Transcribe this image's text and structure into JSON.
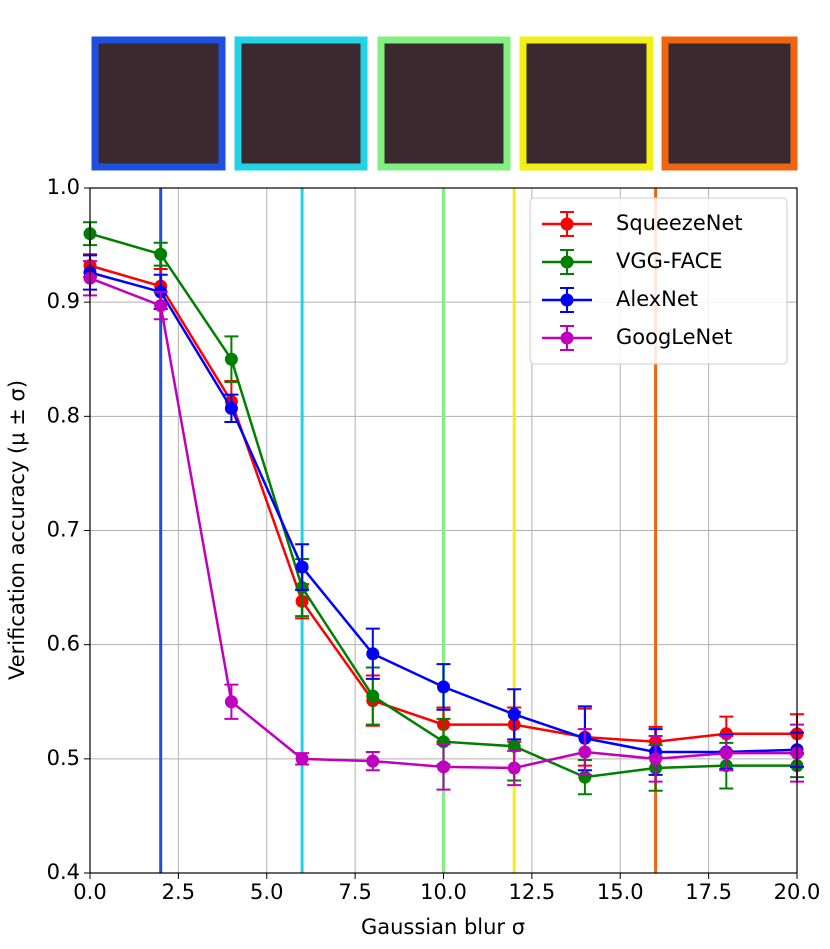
{
  "chart_data": {
    "type": "line",
    "xlabel": "Gaussian blur σ",
    "ylabel": "Verification accuracy (μ ± σ)",
    "x": [
      0,
      2,
      4,
      6,
      8,
      10,
      12,
      14,
      16,
      18,
      20
    ],
    "series": [
      {
        "name": "SqueezeNet",
        "color": "#ff0000",
        "values": [
          0.932,
          0.914,
          0.813,
          0.638,
          0.551,
          0.53,
          0.53,
          0.519,
          0.515,
          0.522,
          0.522
        ],
        "errors": [
          0.01,
          0.015,
          0.018,
          0.015,
          0.022,
          0.015,
          0.015,
          0.025,
          0.013,
          0.015,
          0.017
        ]
      },
      {
        "name": "VGG-FACE",
        "color": "#008000",
        "values": [
          0.96,
          0.942,
          0.85,
          0.65,
          0.555,
          0.515,
          0.511,
          0.484,
          0.492,
          0.494,
          0.494
        ],
        "errors": [
          0.01,
          0.01,
          0.02,
          0.025,
          0.025,
          0.02,
          0.03,
          0.015,
          0.02,
          0.02,
          0.01
        ]
      },
      {
        "name": "AlexNet",
        "color": "#0000ff",
        "values": [
          0.926,
          0.909,
          0.807,
          0.668,
          0.592,
          0.563,
          0.539,
          0.518,
          0.506,
          0.506,
          0.508
        ],
        "errors": [
          0.015,
          0.015,
          0.012,
          0.02,
          0.022,
          0.02,
          0.022,
          0.028,
          0.02,
          0.015,
          0.015
        ]
      },
      {
        "name": "GoogLeNet",
        "color": "#bf00bf",
        "values": [
          0.921,
          0.897,
          0.55,
          0.5,
          0.498,
          0.493,
          0.492,
          0.506,
          0.5,
          0.505,
          0.505
        ],
        "errors": [
          0.015,
          0.012,
          0.015,
          0.005,
          0.008,
          0.02,
          0.015,
          0.02,
          0.02,
          0.015,
          0.025
        ]
      }
    ],
    "vlines": [
      {
        "x": 2,
        "color": "#1f4fe0"
      },
      {
        "x": 6,
        "color": "#22d3e6"
      },
      {
        "x": 10,
        "color": "#80f080"
      },
      {
        "x": 12,
        "color": "#f2ef14"
      },
      {
        "x": 16,
        "color": "#f06410"
      }
    ],
    "xlim": [
      0,
      20
    ],
    "xticks": [
      {
        "value": 0,
        "label": "0.0"
      },
      {
        "value": 2.5,
        "label": "2.5"
      },
      {
        "value": 5,
        "label": "5.0"
      },
      {
        "value": 7.5,
        "label": "7.5"
      },
      {
        "value": 10,
        "label": "10.0"
      },
      {
        "value": 12.5,
        "label": "12.5"
      },
      {
        "value": 15,
        "label": "15.0"
      },
      {
        "value": 17.5,
        "label": "17.5"
      },
      {
        "value": 20,
        "label": "20.0"
      }
    ],
    "ylim": [
      0.4,
      1.0
    ],
    "yticks": [
      0.4,
      0.5,
      0.6,
      0.7,
      0.8,
      0.9,
      {
        "value": 1.0,
        "label": "1.0"
      }
    ],
    "grid": true,
    "legend": "upper right"
  }
}
